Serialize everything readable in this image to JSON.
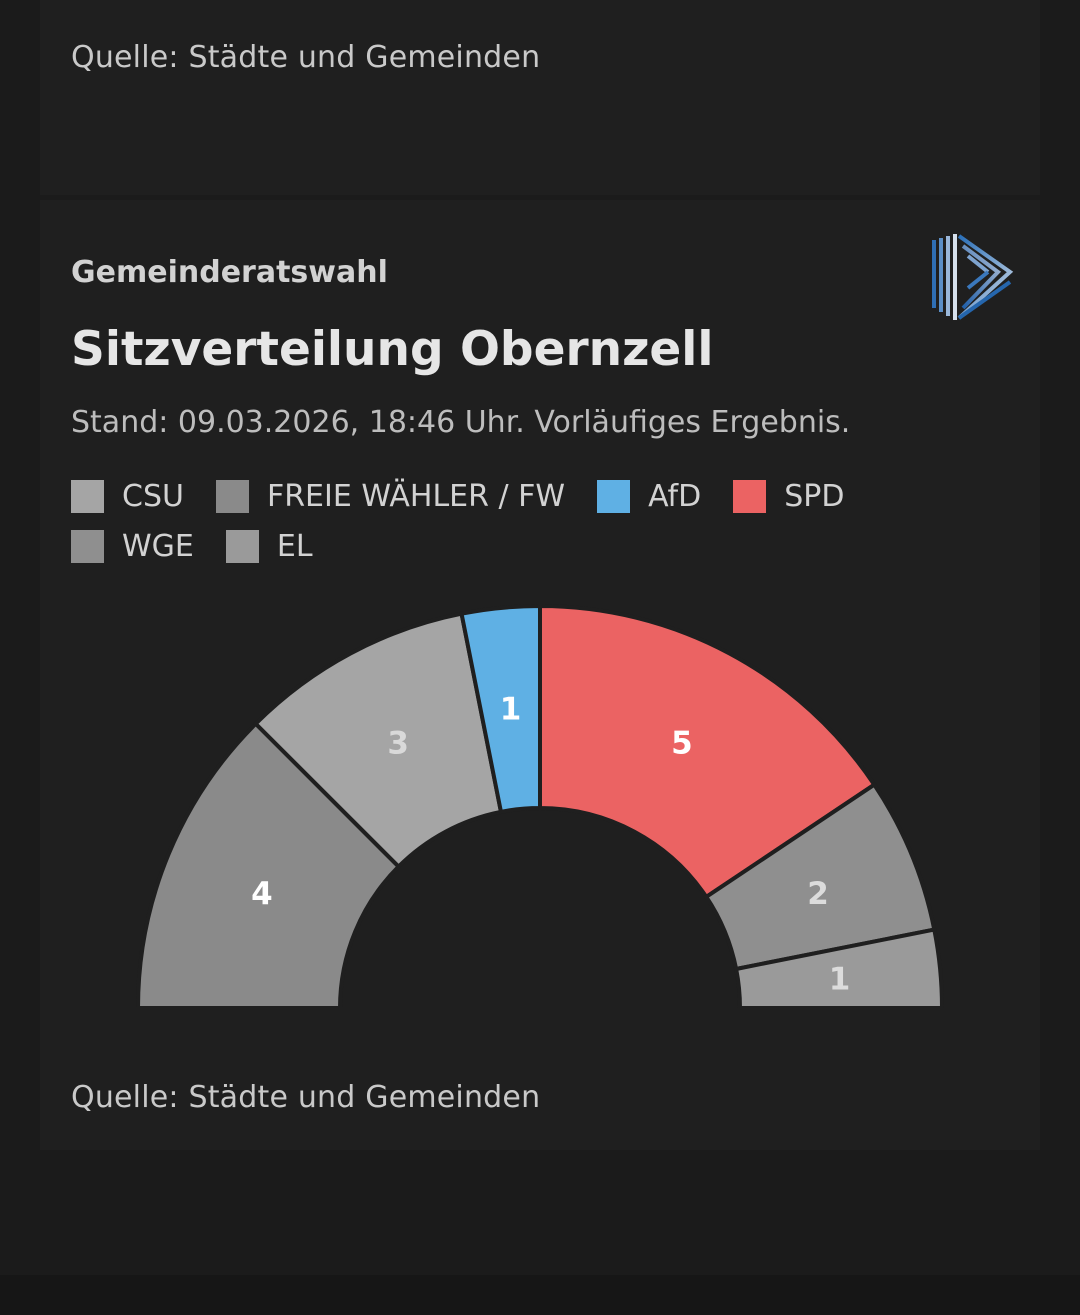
{
  "top": {
    "source": "Quelle: Städte und Gemeinden"
  },
  "card": {
    "kicker": "Gemeinderatswahl",
    "title": "Sitzverteilung Obernzell",
    "subtitle": "Stand: 09.03.2026, 18:46 Uhr. Vorläufiges Ergebnis.",
    "source": "Quelle: Städte und Gemeinden",
    "logo_icon": "publisher-logo-icon"
  },
  "chart_data": {
    "type": "pie",
    "variant": "semicircle-parliament",
    "title": "",
    "series": [
      {
        "name": "CSU",
        "value": 3,
        "color": "#a5a5a5",
        "label_color": "#d9d9d9"
      },
      {
        "name": "FREIE WÄHLER / FW",
        "value": 4,
        "color": "#8a8a8a",
        "label_color": "#ffffff"
      },
      {
        "name": "AfD",
        "value": 1,
        "color": "#5fb0e4",
        "label_color": "#ffffff"
      },
      {
        "name": "SPD",
        "value": 5,
        "color": "#eb6363",
        "label_color": "#ffffff"
      },
      {
        "name": "WGE",
        "value": 2,
        "color": "#8f8f8f",
        "label_color": "#dcdcdc"
      },
      {
        "name": "EL",
        "value": 1,
        "color": "#9a9a9a",
        "label_color": "#dcdcdc"
      }
    ],
    "seat_order": [
      "FREIE WÄHLER / FW",
      "CSU",
      "AfD",
      "SPD",
      "WGE",
      "EL"
    ],
    "total_seats": 16,
    "legend_position": "top-left"
  }
}
